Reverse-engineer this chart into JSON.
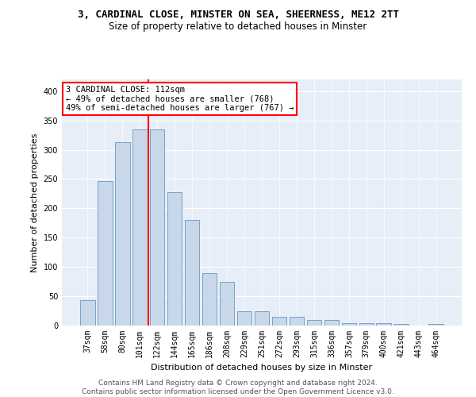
{
  "title": "3, CARDINAL CLOSE, MINSTER ON SEA, SHEERNESS, ME12 2TT",
  "subtitle": "Size of property relative to detached houses in Minster",
  "xlabel": "Distribution of detached houses by size in Minster",
  "ylabel": "Number of detached properties",
  "bar_color": "#c8d8ea",
  "bar_edge_color": "#6699bb",
  "categories": [
    "37sqm",
    "58sqm",
    "80sqm",
    "101sqm",
    "122sqm",
    "144sqm",
    "165sqm",
    "186sqm",
    "208sqm",
    "229sqm",
    "251sqm",
    "272sqm",
    "293sqm",
    "315sqm",
    "336sqm",
    "357sqm",
    "379sqm",
    "400sqm",
    "421sqm",
    "443sqm",
    "464sqm"
  ],
  "values": [
    44,
    246,
    313,
    335,
    335,
    228,
    180,
    90,
    75,
    25,
    25,
    15,
    15,
    9,
    9,
    4,
    4,
    4,
    3,
    0,
    3
  ],
  "ylim": [
    0,
    420
  ],
  "yticks": [
    0,
    50,
    100,
    150,
    200,
    250,
    300,
    350,
    400
  ],
  "annotation_lines": [
    "3 CARDINAL CLOSE: 112sqm",
    "← 49% of detached houses are smaller (768)",
    "49% of semi-detached houses are larger (767) →"
  ],
  "annotation_box_color": "white",
  "annotation_box_edge": "red",
  "vline_color": "red",
  "vline_x": 3.5,
  "background_color": "#e8eef8",
  "footer": "Contains HM Land Registry data © Crown copyright and database right 2024.\nContains public sector information licensed under the Open Government Licence v3.0.",
  "title_fontsize": 9,
  "subtitle_fontsize": 8.5,
  "xlabel_fontsize": 8,
  "ylabel_fontsize": 8,
  "tick_fontsize": 7,
  "annotation_fontsize": 7.5,
  "footer_fontsize": 6.5
}
